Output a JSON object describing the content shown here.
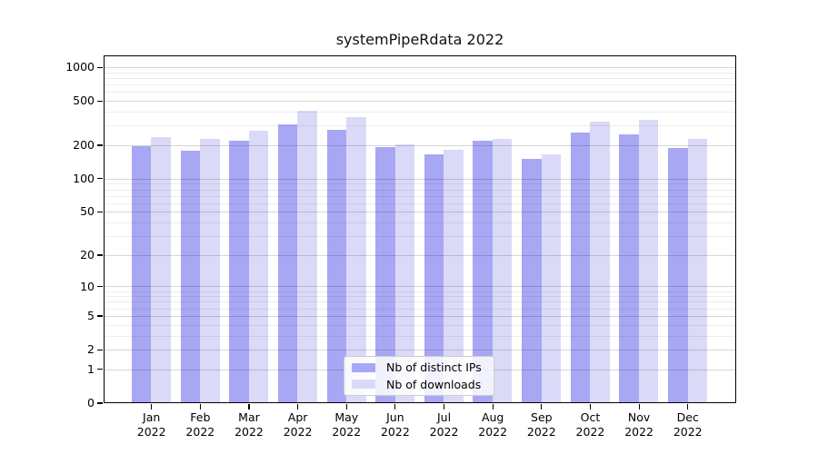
{
  "title": "systemPipeRdata 2022",
  "chart_data": {
    "type": "bar",
    "title": "systemPipeRdata 2022",
    "categories": [
      "Jan",
      "Feb",
      "Mar",
      "Apr",
      "May",
      "Jun",
      "Jul",
      "Aug",
      "Sep",
      "Oct",
      "Nov",
      "Dec"
    ],
    "x_year": "2022",
    "series": [
      {
        "name": "Nb of distinct IPs",
        "color": "#a7a7f4",
        "values": [
          196,
          179,
          220,
          308,
          275,
          192,
          166,
          220,
          151,
          257,
          252,
          187
        ]
      },
      {
        "name": "Nb of downloads",
        "color": "#dadaf8",
        "values": [
          234,
          227,
          268,
          405,
          358,
          205,
          183,
          229,
          166,
          326,
          336,
          228
        ]
      }
    ],
    "y_scale": "log1p",
    "ylim": [
      0,
      1285
    ],
    "y_tick_values": [
      1000,
      500,
      200,
      100,
      50,
      20,
      10,
      5,
      2,
      1,
      0
    ],
    "y_minor_tick_values": [
      3,
      4,
      6,
      7,
      8,
      9,
      30,
      40,
      60,
      70,
      80,
      90,
      300,
      400,
      600,
      700,
      800,
      900
    ],
    "grid": true,
    "legend_position": "lower center"
  },
  "colors": {
    "background": "#ffffff",
    "axis": "#000000",
    "text": "#000000",
    "grid_major": "rgba(0,0,0,0.16)",
    "grid_minor": "rgba(0,0,0,0.07)",
    "legend_border": "#cccccc"
  }
}
